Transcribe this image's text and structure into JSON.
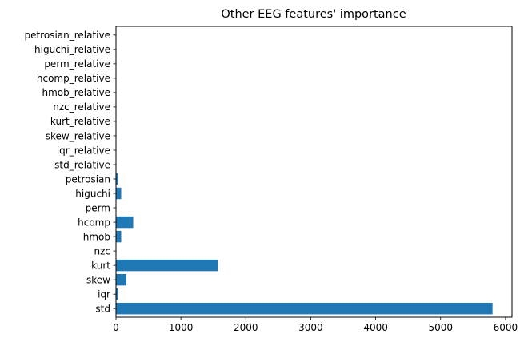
{
  "chart_data": {
    "type": "bar",
    "orientation": "horizontal",
    "title": "Other EEG features' importance",
    "xlabel": "",
    "ylabel": "",
    "xlim": [
      0,
      6100
    ],
    "xticks": [
      0,
      1000,
      2000,
      3000,
      4000,
      5000,
      6000
    ],
    "categories": [
      "std",
      "iqr",
      "skew",
      "kurt",
      "nzc",
      "hmob",
      "hcomp",
      "perm",
      "higuchi",
      "petrosian",
      "std_relative",
      "iqr_relative",
      "skew_relative",
      "kurt_relative",
      "nzc_relative",
      "hmob_relative",
      "hcomp_relative",
      "perm_relative",
      "higuchi_relative",
      "petrosian_relative"
    ],
    "values": [
      5800,
      30,
      160,
      1570,
      0,
      80,
      265,
      0,
      80,
      30,
      0,
      0,
      0,
      0,
      0,
      0,
      0,
      0,
      0,
      0
    ],
    "bar_color": "#1f77b4",
    "grid": false,
    "legend": "none"
  }
}
